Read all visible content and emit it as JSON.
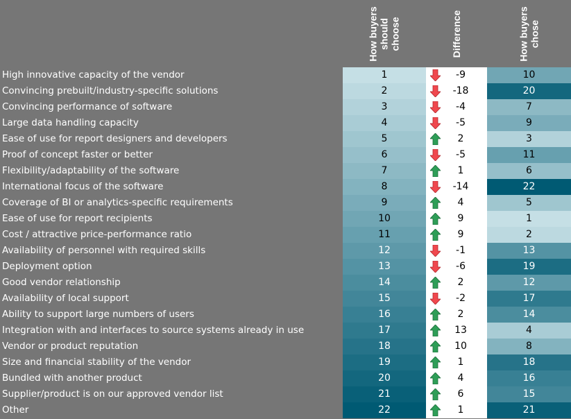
{
  "chart_data": {
    "type": "table",
    "columns": [
      "How buyers should choose",
      "Difference",
      "How buyers chose"
    ],
    "rows": [
      {
        "label": "High innovative capacity of the vendor",
        "should": 1,
        "diff": -9,
        "chose": 10
      },
      {
        "label": "Convincing prebuilt/industry-specific solutions",
        "should": 2,
        "diff": -18,
        "chose": 20
      },
      {
        "label": "Convincing performance of software",
        "should": 3,
        "diff": -4,
        "chose": 7
      },
      {
        "label": "Large data handling capacity",
        "should": 4,
        "diff": -5,
        "chose": 9
      },
      {
        "label": "Ease of use for report designers and developers",
        "should": 5,
        "diff": 2,
        "chose": 3
      },
      {
        "label": "Proof of concept faster or better",
        "should": 6,
        "diff": -5,
        "chose": 11
      },
      {
        "label": "Flexibility/adaptability of the software",
        "should": 7,
        "diff": 1,
        "chose": 6
      },
      {
        "label": "International focus of the software",
        "should": 8,
        "diff": -14,
        "chose": 22
      },
      {
        "label": "Coverage of BI or analytics-specific requirements",
        "should": 9,
        "diff": 4,
        "chose": 5
      },
      {
        "label": "Ease of use for report recipients",
        "should": 10,
        "diff": 9,
        "chose": 1
      },
      {
        "label": "Cost / attractive price-performance ratio",
        "should": 11,
        "diff": 9,
        "chose": 2
      },
      {
        "label": "Availability of personnel with required skills",
        "should": 12,
        "diff": -1,
        "chose": 13
      },
      {
        "label": "Deployment option",
        "should": 13,
        "diff": -6,
        "chose": 19
      },
      {
        "label": "Good vendor relationship",
        "should": 14,
        "diff": 2,
        "chose": 12
      },
      {
        "label": "Availability of local support",
        "should": 15,
        "diff": -2,
        "chose": 17
      },
      {
        "label": "Ability to support large numbers of users",
        "should": 16,
        "diff": 2,
        "chose": 14
      },
      {
        "label": "Integration with and interfaces to source systems already in use",
        "should": 17,
        "diff": 13,
        "chose": 4
      },
      {
        "label": "Vendor or product reputation",
        "should": 18,
        "diff": 10,
        "chose": 8
      },
      {
        "label": "Size and financial stability of the vendor",
        "should": 19,
        "diff": 1,
        "chose": 18
      },
      {
        "label": "Bundled with another product",
        "should": 20,
        "diff": 4,
        "chose": 16
      },
      {
        "label": "Supplier/product is on our approved vendor list",
        "should": 21,
        "diff": 6,
        "chose": 15
      },
      {
        "label": "Other",
        "should": 22,
        "diff": 1,
        "chose": 21
      }
    ],
    "colors": {
      "rank_low": "#c5dfe5",
      "rank_high": "#005a73",
      "up_arrow": "#2e9e57",
      "down_arrow": "#f0484e",
      "background": "#767676"
    }
  },
  "headers": {
    "should": "How buyers\nshould\nchoose",
    "diff": "Difference",
    "chose": "How buyers\nchose"
  }
}
